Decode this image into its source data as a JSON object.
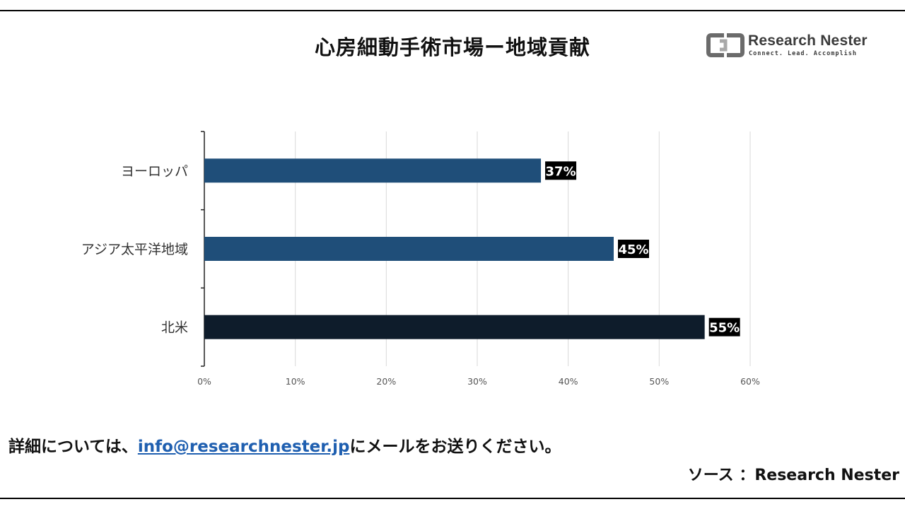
{
  "header": {
    "title": "心房細動手術市場ー地域貢献"
  },
  "logo": {
    "name": "Research Nester",
    "tagline": "Connect. Lead. Accomplish",
    "colors": {
      "dark": "#6b6b6b",
      "light": "#a9a9a9"
    }
  },
  "chart_data": {
    "type": "bar",
    "orientation": "horizontal",
    "title": "",
    "xlabel": "",
    "ylabel": "",
    "categories": [
      "ヨーロッパ",
      "アジア太平洋地域",
      "北米"
    ],
    "values": [
      37,
      45,
      55
    ],
    "value_labels": [
      "37%",
      "45%",
      "55%"
    ],
    "bar_colors": [
      "#1f4e79",
      "#1f4e79",
      "#0e1c2b"
    ],
    "xlim": [
      0,
      60
    ],
    "xticks": [
      0,
      10,
      20,
      30,
      40,
      50,
      60
    ],
    "xtick_labels": [
      "0%",
      "10%",
      "20%",
      "30%",
      "40%",
      "50%",
      "60%"
    ],
    "grid": "vertical",
    "legend": "none"
  },
  "footer": {
    "prefix": "詳細については、",
    "email": "info@researchnester.jp",
    "suffix": "にメールをお送りください。",
    "source": "ソース ：Research Nester"
  }
}
